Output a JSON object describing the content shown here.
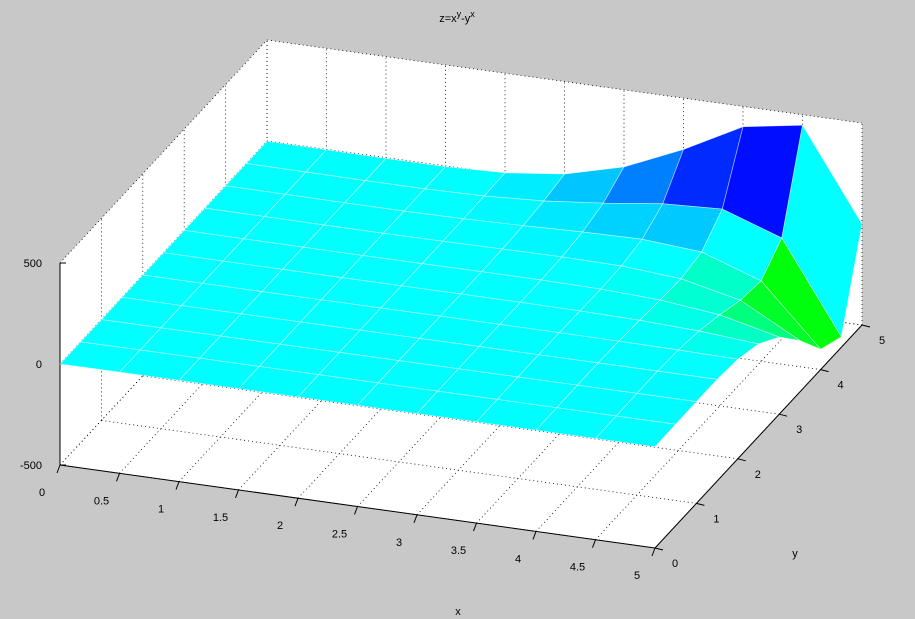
{
  "chart_data": {
    "type": "surface",
    "title": [
      "z=x",
      "y",
      "-y",
      "x"
    ],
    "xlabel": "x",
    "ylabel": "y",
    "x": [
      0,
      0.5,
      1,
      1.5,
      2,
      2.5,
      3,
      3.5,
      4,
      4.5,
      5
    ],
    "y": [
      0,
      0.5,
      1,
      1.5,
      2,
      2.5,
      3,
      3.5,
      4,
      4.5,
      5
    ],
    "z": [
      [
        0,
        1,
        1,
        1,
        1,
        1,
        1,
        1,
        1,
        1,
        1
      ],
      [
        -1,
        0,
        0.5,
        0.87,
        1.16,
        1.4,
        1.61,
        1.78,
        1.94,
        2.08,
        2.2
      ],
      [
        -1,
        -0.5,
        0,
        0.5,
        1,
        1.5,
        2,
        2.5,
        3,
        3.5,
        4
      ],
      [
        -1,
        -0.87,
        -0.5,
        0,
        0.58,
        1.2,
        1.82,
        2.41,
        2.94,
        3.35,
        3.59
      ],
      [
        -1,
        -1.16,
        -1,
        -0.58,
        0,
        0.59,
        1,
        0.94,
        0,
        -2.38,
        -7
      ],
      [
        -1,
        -1.4,
        -1.5,
        -1.2,
        -0.59,
        0,
        -0.04,
        -1.79,
        -7.06,
        -18.81,
        -41.75
      ],
      [
        -1,
        -1.61,
        -2,
        -1.82,
        -1,
        0.04,
        0,
        -3.89,
        -17,
        -49.17,
        -118
      ],
      [
        -1,
        -1.78,
        -2.5,
        -2.41,
        -0.94,
        1.79,
        3.89,
        0,
        -22.06,
        -87.43,
        -245.71
      ],
      [
        -1,
        -1.94,
        -3,
        -2.94,
        0,
        7.06,
        17,
        22.06,
        0,
        -101.94,
        -399
      ],
      [
        -1,
        -2.08,
        -3.5,
        -3.35,
        2.38,
        18.81,
        49.17,
        87.43,
        101.94,
        0,
        -447.8
      ],
      [
        -1,
        -2.2,
        -4,
        -3.59,
        7,
        41.75,
        118,
        245.71,
        399,
        447.8,
        0
      ]
    ],
    "xlim": [
      0,
      5
    ],
    "ylim": [
      0,
      5
    ],
    "zlim": [
      -500,
      500
    ],
    "xticks": [
      0,
      0.5,
      1,
      1.5,
      2,
      2.5,
      3,
      3.5,
      4,
      4.5,
      5
    ],
    "yticks": [
      0,
      1,
      2,
      3,
      4,
      5
    ],
    "zticks": [
      -500,
      0,
      500
    ],
    "grid": true
  }
}
